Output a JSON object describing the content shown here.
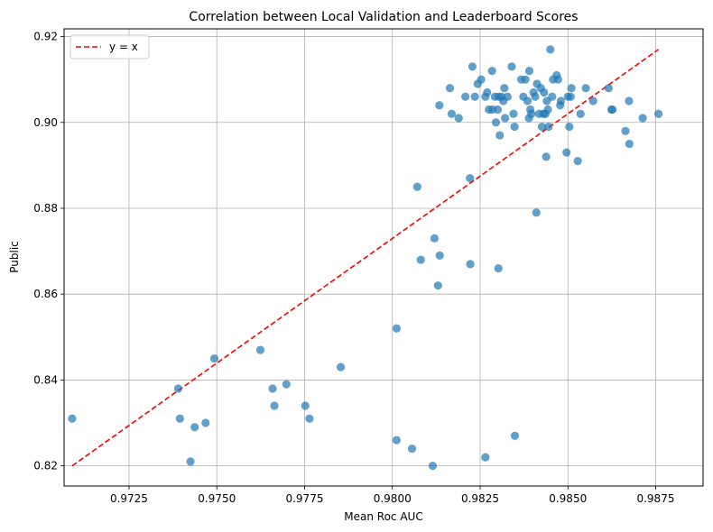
{
  "chart_data": {
    "type": "scatter",
    "title": "Correlation between Local Validation and Leaderboard Scores",
    "xlabel": "Mean Roc AUC",
    "ylabel": "Public",
    "xlim": [
      0.97065,
      0.98885
    ],
    "ylim": [
      0.8153,
      0.9218
    ],
    "x_ticks": [
      "0.9725",
      "0.9750",
      "0.9775",
      "0.9800",
      "0.9825",
      "0.9850",
      "0.9875"
    ],
    "y_ticks": [
      "0.82",
      "0.84",
      "0.86",
      "0.88",
      "0.90",
      "0.92"
    ],
    "grid": true,
    "legend": {
      "position": "top-left",
      "entries": [
        "y = x"
      ]
    },
    "colors": {
      "points": "#1f77b4",
      "reference_line": "#ff0000"
    },
    "reference_line": {
      "name": "y = x",
      "x": [
        0.97088,
        0.98758
      ],
      "y": [
        0.82,
        0.917
      ],
      "style": "dashed"
    },
    "series": [
      {
        "points": [
          [
            0.97088,
            0.831
          ],
          [
            0.9739,
            0.838
          ],
          [
            0.97395,
            0.831
          ],
          [
            0.97425,
            0.821
          ],
          [
            0.97437,
            0.829
          ],
          [
            0.97468,
            0.83
          ],
          [
            0.97493,
            0.845
          ],
          [
            0.97624,
            0.847
          ],
          [
            0.97659,
            0.838
          ],
          [
            0.97664,
            0.834
          ],
          [
            0.97698,
            0.839
          ],
          [
            0.97752,
            0.834
          ],
          [
            0.97764,
            0.831
          ],
          [
            0.97853,
            0.843
          ],
          [
            0.98012,
            0.852
          ],
          [
            0.98012,
            0.826
          ],
          [
            0.98056,
            0.824
          ],
          [
            0.98071,
            0.885
          ],
          [
            0.98081,
            0.868
          ],
          [
            0.98115,
            0.82
          ],
          [
            0.9812,
            0.873
          ],
          [
            0.9813,
            0.862
          ],
          [
            0.98135,
            0.869
          ],
          [
            0.98222,
            0.867
          ],
          [
            0.98265,
            0.822
          ],
          [
            0.98349,
            0.827
          ],
          [
            0.98302,
            0.866
          ],
          [
            0.98221,
            0.887
          ],
          [
            0.98134,
            0.904
          ],
          [
            0.98164,
            0.908
          ],
          [
            0.98169,
            0.902
          ],
          [
            0.98189,
            0.901
          ],
          [
            0.98208,
            0.906
          ],
          [
            0.98228,
            0.913
          ],
          [
            0.98235,
            0.906
          ],
          [
            0.98243,
            0.909
          ],
          [
            0.98253,
            0.91
          ],
          [
            0.98265,
            0.906
          ],
          [
            0.9827,
            0.907
          ],
          [
            0.98275,
            0.903
          ],
          [
            0.98284,
            0.912
          ],
          [
            0.98285,
            0.903
          ],
          [
            0.98292,
            0.906
          ],
          [
            0.98295,
            0.9
          ],
          [
            0.983,
            0.903
          ],
          [
            0.98303,
            0.906
          ],
          [
            0.98306,
            0.897
          ],
          [
            0.98311,
            0.906
          ],
          [
            0.98316,
            0.905
          ],
          [
            0.98319,
            0.908
          ],
          [
            0.98321,
            0.901
          ],
          [
            0.98328,
            0.906
          ],
          [
            0.9834,
            0.913
          ],
          [
            0.98345,
            0.902
          ],
          [
            0.98348,
            0.899
          ],
          [
            0.98367,
            0.91
          ],
          [
            0.98373,
            0.906
          ],
          [
            0.98379,
            0.91
          ],
          [
            0.98385,
            0.905
          ],
          [
            0.98389,
            0.901
          ],
          [
            0.9839,
            0.912
          ],
          [
            0.98393,
            0.903
          ],
          [
            0.98396,
            0.902
          ],
          [
            0.98402,
            0.907
          ],
          [
            0.98407,
            0.906
          ],
          [
            0.9841,
            0.879
          ],
          [
            0.98412,
            0.909
          ],
          [
            0.98418,
            0.902
          ],
          [
            0.98423,
            0.908
          ],
          [
            0.98426,
            0.899
          ],
          [
            0.9843,
            0.902
          ],
          [
            0.98432,
            0.907
          ],
          [
            0.98436,
            0.902
          ],
          [
            0.98438,
            0.892
          ],
          [
            0.9844,
            0.905
          ],
          [
            0.98443,
            0.903
          ],
          [
            0.98445,
            0.899
          ],
          [
            0.9845,
            0.917
          ],
          [
            0.98455,
            0.906
          ],
          [
            0.98458,
            0.91
          ],
          [
            0.98468,
            0.911
          ],
          [
            0.98472,
            0.91
          ],
          [
            0.98478,
            0.904
          ],
          [
            0.9848,
            0.905
          ],
          [
            0.98496,
            0.893
          ],
          [
            0.985,
            0.906
          ],
          [
            0.98504,
            0.899
          ],
          [
            0.98508,
            0.906
          ],
          [
            0.9851,
            0.908
          ],
          [
            0.98528,
            0.891
          ],
          [
            0.98536,
            0.902
          ],
          [
            0.98551,
            0.908
          ],
          [
            0.98572,
            0.905
          ],
          [
            0.98616,
            0.908
          ],
          [
            0.98624,
            0.903
          ],
          [
            0.98627,
            0.903
          ],
          [
            0.98664,
            0.898
          ],
          [
            0.98674,
            0.905
          ],
          [
            0.98675,
            0.895
          ],
          [
            0.98713,
            0.901
          ],
          [
            0.98758,
            0.902
          ]
        ]
      }
    ]
  }
}
